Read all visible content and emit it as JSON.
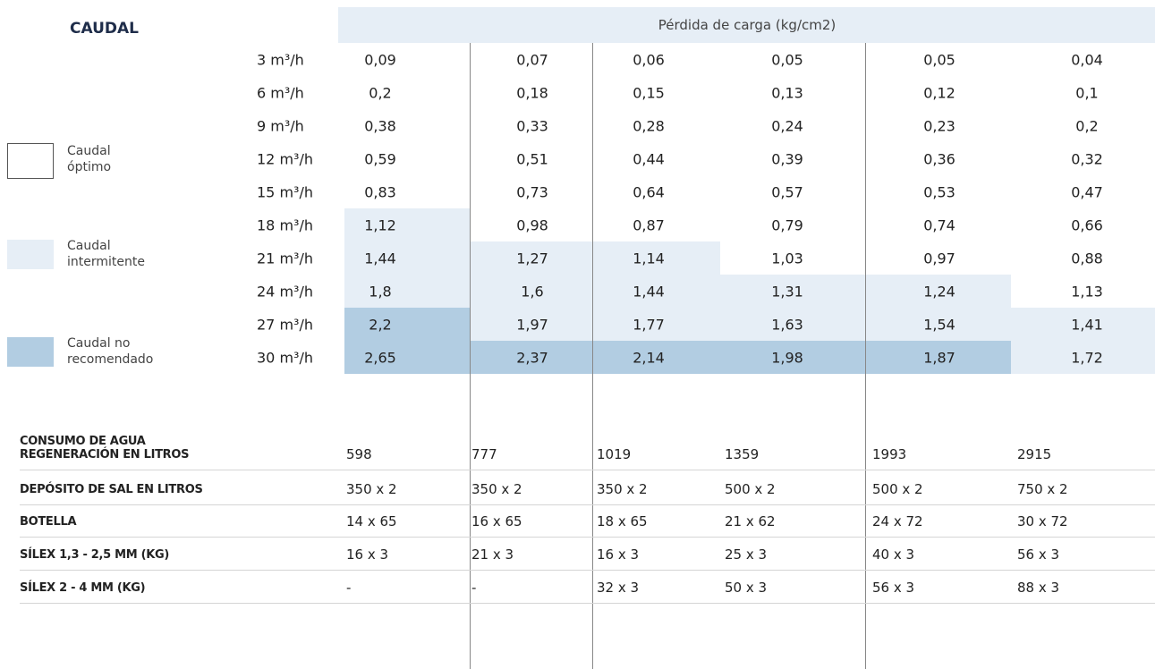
{
  "header": {
    "caudal_title": "CAUDAL",
    "pressure_title": "Pérdida de carga (kg/cm2)"
  },
  "legend": [
    {
      "lines": [
        "Caudal",
        "óptimo"
      ],
      "color": "#ffffff"
    },
    {
      "lines": [
        "Caudal",
        "intermitente"
      ],
      "color": "#e6eef6"
    },
    {
      "lines": [
        "Caudal no",
        "recomendado"
      ],
      "color": "#b2cde2"
    }
  ],
  "table": {
    "flows": [
      "3 m³/h",
      "6 m³/h",
      "9 m³/h",
      "12 m³/h",
      "15 m³/h",
      "18 m³/h",
      "21 m³/h",
      "24 m³/h",
      "27 m³/h",
      "30 m³/h"
    ],
    "rows": [
      [
        "0,09",
        "0,07",
        "0,06",
        "0,05",
        "0,05",
        "0,04"
      ],
      [
        "0,2",
        "0,18",
        "0,15",
        "0,13",
        "0,12",
        "0,1"
      ],
      [
        "0,38",
        "0,33",
        "0,28",
        "0,24",
        "0,23",
        "0,2"
      ],
      [
        "0,59",
        "0,51",
        "0,44",
        "0,39",
        "0,36",
        "0,32"
      ],
      [
        "0,83",
        "0,73",
        "0,64",
        "0,57",
        "0,53",
        "0,47"
      ],
      [
        "1,12",
        "0,98",
        "0,87",
        "0,79",
        "0,74",
        "0,66"
      ],
      [
        "1,44",
        "1,27",
        "1,14",
        "1,03",
        "0,97",
        "0,88"
      ],
      [
        "1,8",
        "1,6",
        "1,44",
        "1,31",
        "1,24",
        "1,13"
      ],
      [
        "2,2",
        "1,97",
        "1,77",
        "1,63",
        "1,54",
        "1,41"
      ],
      [
        "2,65",
        "2,37",
        "2,14",
        "1,98",
        "1,87",
        "1,72"
      ]
    ],
    "zones": [
      [
        0,
        0,
        0,
        0,
        0,
        0
      ],
      [
        0,
        0,
        0,
        0,
        0,
        0
      ],
      [
        0,
        0,
        0,
        0,
        0,
        0
      ],
      [
        0,
        0,
        0,
        0,
        0,
        0
      ],
      [
        0,
        0,
        0,
        0,
        0,
        0
      ],
      [
        1,
        0,
        0,
        0,
        0,
        0
      ],
      [
        1,
        1,
        1,
        0,
        0,
        0
      ],
      [
        1,
        1,
        1,
        1,
        1,
        0
      ],
      [
        2,
        1,
        1,
        1,
        1,
        1
      ],
      [
        2,
        2,
        2,
        2,
        2,
        1
      ]
    ]
  },
  "specs": [
    {
      "label": [
        "CONSUMO DE AGUA",
        "REGENERACIÓN EN LITROS"
      ],
      "values": [
        "598",
        "777",
        "1019",
        "1359",
        "1993",
        "2915"
      ]
    },
    {
      "label": [
        "DEPÓSITO DE SAL EN LITROS"
      ],
      "values": [
        "350 x 2",
        "350 x 2",
        "350 x 2",
        "500 x 2",
        "500 x 2",
        "750 x 2"
      ]
    },
    {
      "label": [
        "BOTELLA"
      ],
      "values": [
        "14 x 65",
        "16 x 65",
        "18 x 65",
        "21 x 62",
        "24 x 72",
        "30 x 72"
      ]
    },
    {
      "label": [
        "SÍLEX 1,3 - 2,5 MM (KG)"
      ],
      "values": [
        "16 x 3",
        "21 x 3",
        "16 x 3",
        "25 x 3",
        "40 x 3",
        "56 x 3"
      ]
    },
    {
      "label": [
        "SÍLEX 2 - 4 MM (KG)"
      ],
      "values": [
        "-",
        "-",
        "32 x 3",
        "50 x 3",
        "56 x 3",
        "88 x 3"
      ]
    }
  ]
}
